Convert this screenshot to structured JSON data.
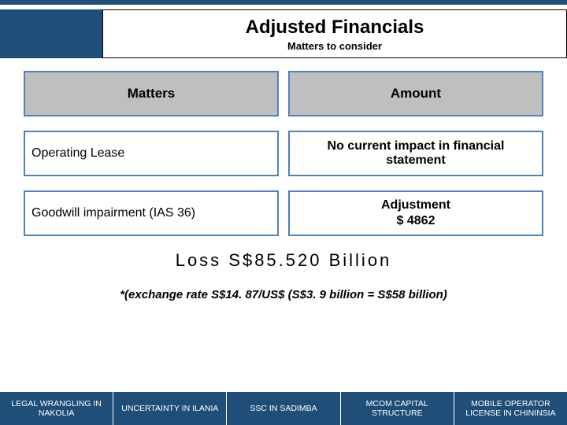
{
  "colors": {
    "brand": "#1f4e79",
    "header_gray": "#bfbfbf",
    "cell_border": "#4f81bd",
    "background": "#ffffff"
  },
  "header": {
    "title": "Adjusted Financials",
    "subtitle": "Matters to consider"
  },
  "table": {
    "columns": [
      "Matters",
      "Amount"
    ],
    "rows": [
      {
        "matter": "Operating Lease",
        "amount": "No current impact in financial statement"
      },
      {
        "matter": "Goodwill impairment (IAS 36)",
        "amount_line1": "Adjustment",
        "amount_line2": "$ 4862"
      }
    ]
  },
  "loss": "Loss S$85.520 Billion",
  "exchange_rate_note": "*(exchange rate S$14. 87/US$ (S$3. 9 billion = S$58 billion)",
  "nav": [
    "LEGAL WRANGLING IN NAKOLIA",
    "UNCERTAINTY IN ILANIA",
    "SSC IN SADIMBA",
    "MCOM CAPITAL STRUCTURE",
    "MOBILE OPERATOR LICENSE IN CHININSIA"
  ]
}
